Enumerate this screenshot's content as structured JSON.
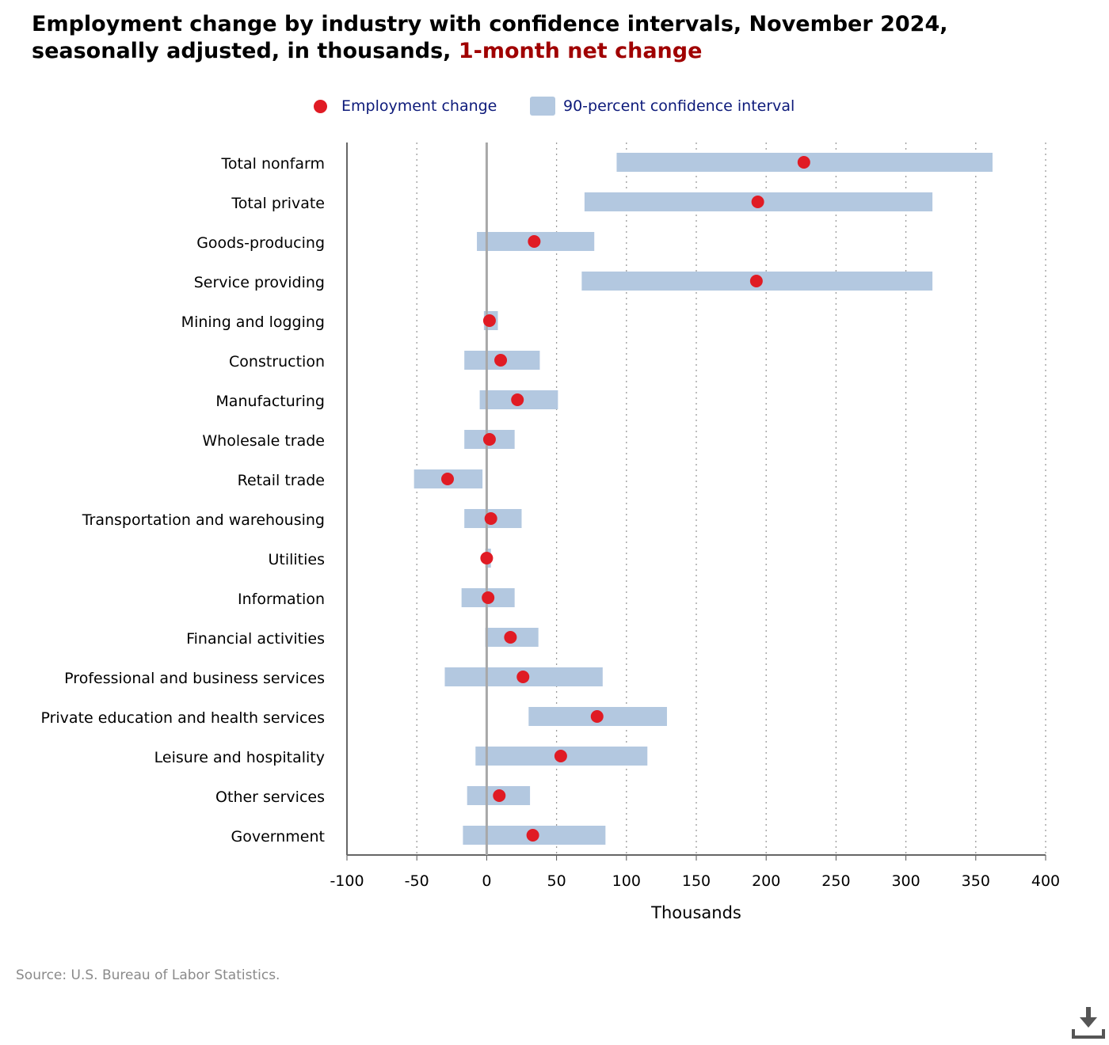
{
  "title": {
    "line1": "Employment change by industry with confidence intervals, November 2024,",
    "line2_prefix": "seasonally adjusted, in thousands,",
    "line2_highlight": "1-month net change"
  },
  "legend": {
    "point_label": "Employment change",
    "interval_label": "90-percent confidence interval"
  },
  "source": "Source: U.S. Bureau of Labor Statistics.",
  "colors": {
    "point": "#e01b24",
    "interval": "#b3c8e0",
    "title_highlight": "#a00000",
    "legend_text": "#0d1a7a"
  },
  "icons": {
    "download": "download-icon"
  },
  "chart_data": {
    "type": "scatter",
    "subtype": "dot-with-interval",
    "xlabel": "Thousands",
    "xlim": [
      -100,
      400
    ],
    "xticks": [
      -100,
      -50,
      0,
      50,
      100,
      150,
      200,
      250,
      300,
      350,
      400
    ],
    "xtick_labels": [
      "-100",
      "-50",
      "0",
      "50",
      "100",
      "150",
      "200",
      "250",
      "300",
      "350",
      "400"
    ],
    "grid": "vertical dotted",
    "categories": [
      "Total nonfarm",
      "Total private",
      "Goods-producing",
      "Service providing",
      "Mining and logging",
      "Construction",
      "Manufacturing",
      "Wholesale trade",
      "Retail trade",
      "Transportation and warehousing",
      "Utilities",
      "Information",
      "Financial activities",
      "Professional and business services",
      "Private education and health services",
      "Leisure and hospitality",
      "Other services",
      "Government"
    ],
    "series": [
      {
        "name": "Employment change",
        "values": [
          227,
          194,
          34,
          193,
          2,
          10,
          22,
          2,
          -28,
          3,
          0,
          1,
          17,
          26,
          79,
          53,
          9,
          33
        ]
      },
      {
        "name": "90-percent confidence interval",
        "low": [
          93,
          70,
          -7,
          68,
          -2,
          -16,
          -5,
          -16,
          -52,
          -16,
          -1,
          -18,
          -1,
          -30,
          30,
          -8,
          -14,
          -17
        ],
        "high": [
          362,
          319,
          77,
          319,
          8,
          38,
          51,
          20,
          -3,
          25,
          3,
          20,
          37,
          83,
          129,
          115,
          31,
          85
        ]
      }
    ]
  }
}
